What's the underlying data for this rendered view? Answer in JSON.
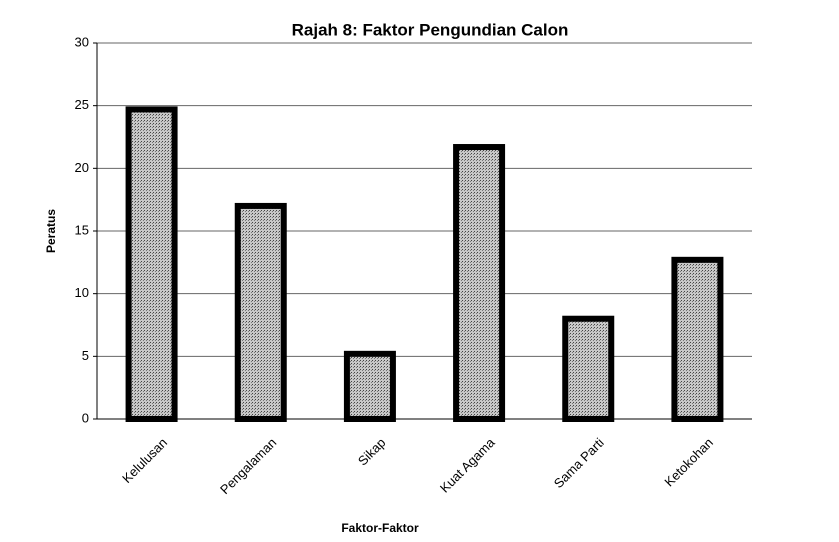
{
  "chart_data": {
    "type": "bar",
    "title": "Rajah 8: Faktor Pengundian Calon",
    "x_label": "Faktor-Faktor",
    "y_label": "Peratus",
    "categories": [
      "Kelulusan",
      "Pengalaman",
      "Sikap",
      "Kuat Agama",
      "Sama Parti",
      "Ketokohan"
    ],
    "values": [
      24.7,
      17,
      5.2,
      21.7,
      8,
      12.7
    ],
    "color": "#a8a8a8",
    "ylim": [
      0,
      30
    ],
    "yticks": [
      0,
      5,
      10,
      15,
      20,
      25,
      30
    ],
    "grid": true
  }
}
